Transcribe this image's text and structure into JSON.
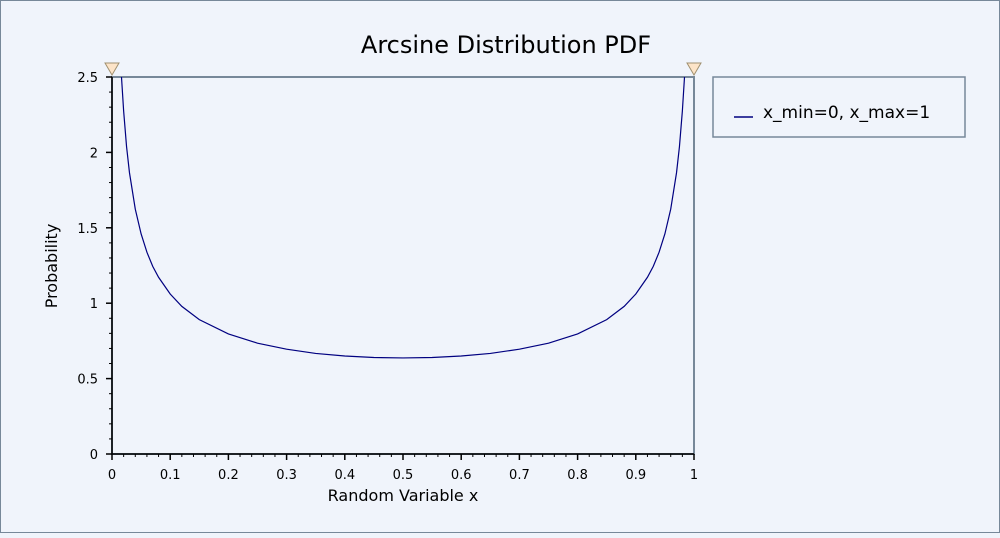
{
  "chart_data": {
    "type": "line",
    "title": "Arcsine Distribution PDF",
    "xlabel": "Random Variable x",
    "ylabel": "Probability",
    "xlim": [
      0,
      1
    ],
    "ylim": [
      0,
      2.5
    ],
    "x_ticks": [
      "0",
      "0.1",
      "0.2",
      "0.3",
      "0.4",
      "0.5",
      "0.6",
      "0.7",
      "0.8",
      "0.9",
      "1"
    ],
    "y_ticks": [
      "0",
      "0.5",
      "1",
      "1.5",
      "2",
      "2.5"
    ],
    "grid": false,
    "legend_position": "right",
    "series": [
      {
        "name": "x_min=0, x_max=1",
        "color": "#000080",
        "x": [
          0.0163,
          0.02,
          0.025,
          0.03,
          0.04,
          0.05,
          0.06,
          0.07,
          0.08,
          0.1,
          0.12,
          0.15,
          0.2,
          0.25,
          0.3,
          0.35,
          0.4,
          0.45,
          0.5,
          0.55,
          0.6,
          0.65,
          0.7,
          0.75,
          0.8,
          0.85,
          0.88,
          0.9,
          0.92,
          0.93,
          0.94,
          0.95,
          0.96,
          0.97,
          0.975,
          0.98,
          0.9837
        ],
        "y": [
          2.5,
          2.274,
          2.039,
          1.866,
          1.624,
          1.46,
          1.338,
          1.244,
          1.172,
          1.061,
          0.979,
          0.891,
          0.796,
          0.735,
          0.695,
          0.667,
          0.65,
          0.64,
          0.637,
          0.64,
          0.65,
          0.667,
          0.695,
          0.735,
          0.796,
          0.891,
          0.979,
          1.061,
          1.172,
          1.244,
          1.338,
          1.46,
          1.624,
          1.866,
          2.039,
          2.274,
          2.5
        ]
      }
    ],
    "colors": {
      "background": "#f0f4fb",
      "plot_frame": "#778899",
      "axis": "#000000",
      "marker_fill": "#fde4c8"
    }
  }
}
